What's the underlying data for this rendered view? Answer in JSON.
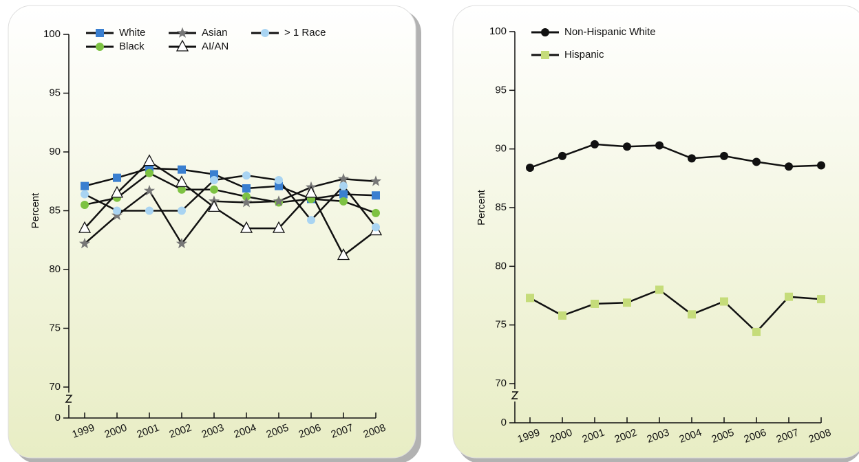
{
  "chart_data": [
    {
      "type": "line",
      "y_label": "Percent",
      "categories": [
        "1999",
        "2000",
        "2001",
        "2002",
        "2003",
        "2004",
        "2005",
        "2006",
        "2007",
        "2008"
      ],
      "ylim": [
        0,
        100
      ],
      "axis_break": [
        0,
        70
      ],
      "yticks": [
        0,
        70,
        75,
        80,
        85,
        90,
        95,
        100
      ],
      "series": [
        {
          "name": "White",
          "color": "#3a7fd0",
          "marker": "square",
          "values": [
            87.1,
            87.8,
            88.6,
            88.5,
            88.1,
            86.9,
            87.1,
            86.0,
            86.4,
            86.3
          ]
        },
        {
          "name": "Black",
          "color": "#7dc242",
          "marker": "circle",
          "values": [
            85.5,
            86.1,
            88.2,
            86.8,
            86.8,
            86.2,
            85.7,
            86.0,
            85.8,
            84.8
          ]
        },
        {
          "name": "Asian",
          "color": "#777777",
          "marker": "star",
          "values": [
            82.2,
            84.6,
            86.7,
            82.2,
            85.8,
            85.7,
            85.8,
            87.0,
            87.7,
            87.5
          ]
        },
        {
          "name": "AI/AN",
          "color": "#ffffff",
          "marker": "triangle",
          "values": [
            83.5,
            86.5,
            89.2,
            87.4,
            85.3,
            83.5,
            83.5,
            86.5,
            81.2,
            83.3
          ]
        },
        {
          "name": "> 1 Race",
          "color": "#a9d4f2",
          "marker": "circle",
          "values": [
            86.4,
            85.0,
            85.0,
            85.0,
            87.6,
            88.0,
            87.6,
            84.2,
            87.1,
            83.6
          ]
        }
      ]
    },
    {
      "type": "line",
      "y_label": "Percent",
      "categories": [
        "1999",
        "2000",
        "2001",
        "2002",
        "2003",
        "2004",
        "2005",
        "2006",
        "2007",
        "2008"
      ],
      "ylim": [
        0,
        100
      ],
      "axis_break": [
        0,
        70
      ],
      "yticks": [
        0,
        70,
        75,
        80,
        85,
        90,
        95,
        100
      ],
      "series": [
        {
          "name": "Non-Hispanic White",
          "color": "#111111",
          "marker": "circle",
          "values": [
            88.4,
            89.4,
            90.4,
            90.2,
            90.3,
            89.2,
            89.4,
            88.9,
            88.5,
            88.6
          ]
        },
        {
          "name": "Hispanic",
          "color": "#c5dc7a",
          "marker": "square",
          "values": [
            77.3,
            75.8,
            76.8,
            76.9,
            78.0,
            75.9,
            77.0,
            74.4,
            77.4,
            77.2
          ]
        }
      ]
    }
  ]
}
